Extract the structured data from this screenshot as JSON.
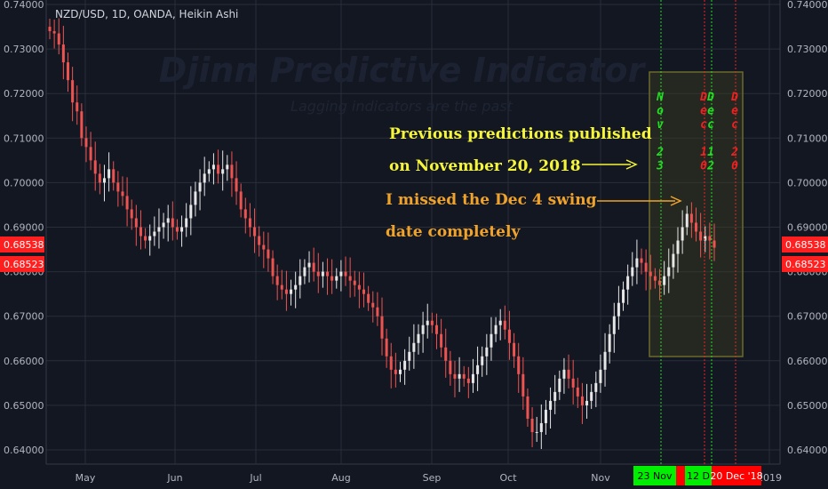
{
  "header": {
    "symbol_line": "NZD/USD, 1D, OANDA, Heikin Ashi"
  },
  "watermark": {
    "title": "Djinn Predictive Indicator",
    "subtitle": "Lagging indicators are the past"
  },
  "annotations": {
    "line1": "Previous predictions published",
    "line2": "on November 20, 2018",
    "line3": "I missed the Dec 4 swing",
    "line4": "date completely"
  },
  "markers": [
    {
      "label_chars": [
        "N",
        "o",
        "v",
        "",
        "2",
        "3"
      ],
      "color": "#22dd22",
      "date_tag": "23 Nov",
      "tag_bg": "#00ee00",
      "tag_fg": "#000000"
    },
    {
      "label_chars": [
        "D",
        "e",
        "c",
        "",
        "1",
        "0"
      ],
      "color": "#ee2222",
      "date_tag": "",
      "tag_bg": "#ff0000",
      "tag_fg": "#ffffff"
    },
    {
      "label_chars": [
        "D",
        "e",
        "c",
        "",
        "1",
        "2"
      ],
      "color": "#22dd22",
      "date_tag": "12 D",
      "tag_bg": "#00ee00",
      "tag_fg": "#000000"
    },
    {
      "label_chars": [
        "D",
        "e",
        "c",
        "",
        "2",
        "0"
      ],
      "color": "#ee2222",
      "date_tag": "20 Dec '18",
      "tag_bg": "#ff0000",
      "tag_fg": "#ffffff"
    }
  ],
  "colors": {
    "up_candle": "#e6e6e6",
    "down_candle": "#ef5350",
    "grid": "#2a2e39",
    "price_tag": "#ff1f1f"
  },
  "chart_data": {
    "type": "candlestick",
    "title": "NZD/USD, 1D, OANDA, Heikin Ashi",
    "xlabel": "",
    "ylabel": "",
    "ylim": [
      0.6375,
      0.74
    ],
    "y_ticks": [
      "0.64000",
      "0.65000",
      "0.66000",
      "0.67000",
      "0.68000",
      "0.69000",
      "0.70000",
      "0.71000",
      "0.72000",
      "0.73000",
      "0.74000"
    ],
    "x_tick_labels": [
      "May",
      "Jun",
      "Jul",
      "Aug",
      "Sep",
      "Oct",
      "Nov",
      "2019"
    ],
    "price_labels": [
      "0.68538",
      "0.68523"
    ],
    "series": [
      {
        "values": [
          0.734,
          0.7335,
          0.731,
          0.727,
          0.723,
          0.718,
          0.716,
          0.71,
          0.708,
          0.705,
          0.702,
          0.7,
          0.701,
          0.703,
          0.7,
          0.698,
          0.697,
          0.694,
          0.692,
          0.69,
          0.688,
          0.687,
          0.688,
          0.689,
          0.69,
          0.691,
          0.692,
          0.69,
          0.689,
          0.69,
          0.692,
          0.695,
          0.698,
          0.7,
          0.702,
          0.703,
          0.704,
          0.702,
          0.703,
          0.704,
          0.701,
          0.698,
          0.694,
          0.692,
          0.69,
          0.688,
          0.686,
          0.685,
          0.683,
          0.679,
          0.677,
          0.676,
          0.675,
          0.676,
          0.677,
          0.679,
          0.681,
          0.682,
          0.68,
          0.679,
          0.68,
          0.679,
          0.678,
          0.679,
          0.68,
          0.679,
          0.678,
          0.677,
          0.676,
          0.675,
          0.673,
          0.672,
          0.67,
          0.665,
          0.661,
          0.658,
          0.657,
          0.658,
          0.66,
          0.662,
          0.664,
          0.666,
          0.668,
          0.669,
          0.668,
          0.666,
          0.663,
          0.66,
          0.657,
          0.656,
          0.657,
          0.656,
          0.655,
          0.657,
          0.659,
          0.661,
          0.663,
          0.666,
          0.668,
          0.669,
          0.667,
          0.664,
          0.661,
          0.657,
          0.652,
          0.647,
          0.644,
          0.644,
          0.646,
          0.649,
          0.651,
          0.653,
          0.656,
          0.658,
          0.656,
          0.654,
          0.652,
          0.65,
          0.651,
          0.653,
          0.655,
          0.658,
          0.662,
          0.666,
          0.67,
          0.673,
          0.676,
          0.679,
          0.681,
          0.683,
          0.682,
          0.68,
          0.679,
          0.678,
          0.677,
          0.679,
          0.681,
          0.684,
          0.687,
          0.69,
          0.693,
          0.691,
          0.689,
          0.687,
          0.688,
          0.687,
          0.6854
        ]
      }
    ]
  }
}
